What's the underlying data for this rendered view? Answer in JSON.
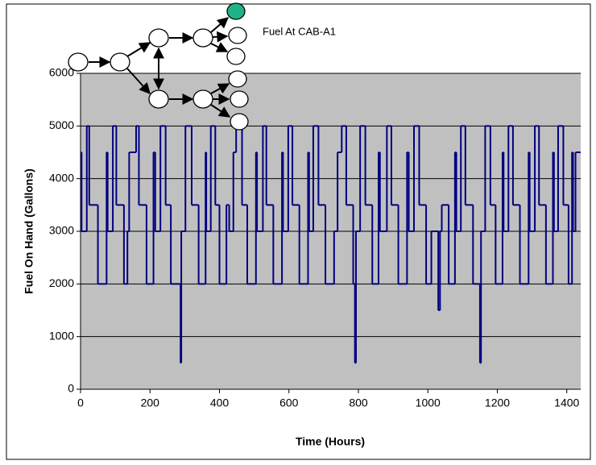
{
  "chart_data": {
    "type": "line",
    "step": "post",
    "xlabel": "Time (Hours)",
    "ylabel": "Fuel On Hand (Gallons)",
    "annotation": "Fuel At CAB-A1",
    "color": "#000080",
    "grid": true,
    "xlim": [
      0,
      1440
    ],
    "ylim": [
      0,
      6000
    ],
    "xticks": [
      0,
      200,
      400,
      600,
      800,
      1000,
      1200,
      1400
    ],
    "yticks": [
      0,
      1000,
      2000,
      3000,
      4000,
      5000,
      6000
    ],
    "x": [
      0,
      3,
      18,
      25,
      50,
      75,
      78,
      93,
      103,
      125,
      135,
      140,
      160,
      168,
      190,
      210,
      215,
      230,
      245,
      260,
      288,
      290,
      302,
      320,
      340,
      360,
      362,
      375,
      388,
      400,
      420,
      428,
      440,
      448,
      465,
      480,
      505,
      508,
      525,
      535,
      555,
      580,
      583,
      598,
      610,
      630,
      655,
      658,
      670,
      685,
      705,
      730,
      740,
      752,
      765,
      785,
      790,
      793,
      805,
      820,
      840,
      858,
      862,
      882,
      895,
      915,
      940,
      945,
      960,
      975,
      995,
      1010,
      1030,
      1035,
      1040,
      1060,
      1078,
      1082,
      1095,
      1108,
      1130,
      1150,
      1153,
      1165,
      1180,
      1195,
      1215,
      1218,
      1232,
      1245,
      1265,
      1290,
      1293,
      1308,
      1320,
      1340,
      1360,
      1363,
      1375,
      1390,
      1405,
      1415,
      1418,
      1425
    ],
    "values": [
      4500,
      3000,
      5000,
      3500,
      2000,
      4500,
      3000,
      5000,
      3500,
      2000,
      3000,
      4500,
      5000,
      3500,
      2000,
      4500,
      3000,
      5000,
      3500,
      2000,
      500,
      3000,
      5000,
      3500,
      2000,
      4500,
      3000,
      5000,
      3500,
      2000,
      3500,
      3000,
      4500,
      5000,
      3500,
      2000,
      4500,
      3000,
      5000,
      3500,
      2000,
      4500,
      3000,
      5000,
      3500,
      2000,
      4500,
      3000,
      5000,
      3500,
      2000,
      3000,
      4500,
      5000,
      3500,
      2000,
      500,
      3000,
      5000,
      3500,
      2000,
      4500,
      3000,
      5000,
      3500,
      2000,
      4500,
      3000,
      5000,
      3500,
      2000,
      3000,
      1500,
      3000,
      3500,
      2000,
      4500,
      3000,
      5000,
      3500,
      2000,
      500,
      3000,
      5000,
      3500,
      2000,
      4500,
      3000,
      5000,
      3500,
      2000,
      4500,
      3000,
      5000,
      3500,
      2000,
      4500,
      3000,
      5000,
      3500,
      2000,
      4500,
      3000,
      4500
    ]
  }
}
